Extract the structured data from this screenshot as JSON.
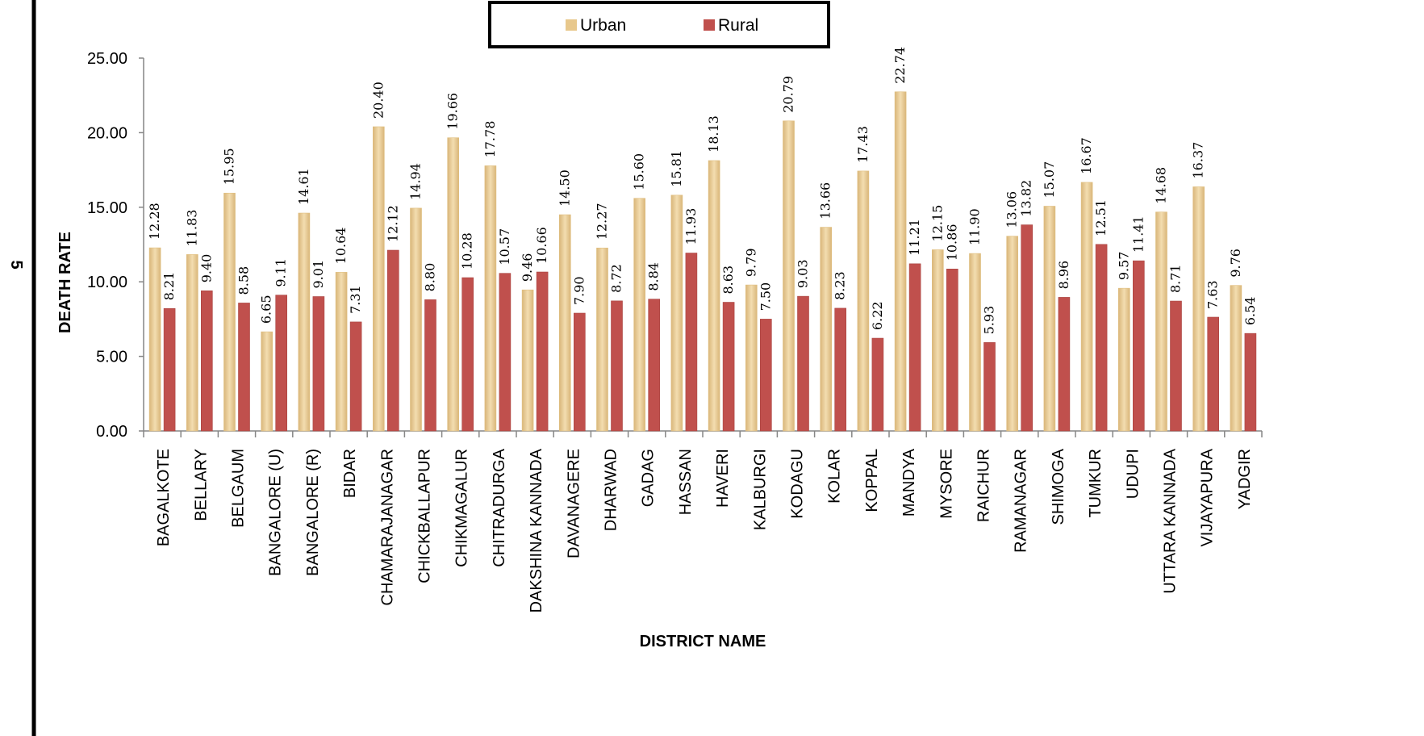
{
  "page_number": "5",
  "chart_data": {
    "type": "bar",
    "xlabel": "DISTRICT NAME",
    "ylabel": "DEATH RATE",
    "ylim": [
      0,
      25
    ],
    "yticks": [
      "0.00",
      "5.00",
      "10.00",
      "15.00",
      "20.00",
      "25.00"
    ],
    "grid": false,
    "legend_position": "top-center",
    "categories": [
      "BAGALKOTE",
      "BELLARY",
      "BELGAUM",
      "BANGALORE (U)",
      "BANGALORE (R)",
      "BIDAR",
      "CHAMARAJANAGAR",
      "CHICKBALLAPUR",
      "CHIKMAGALUR",
      "CHITRADURGA",
      "DAKSHINA KANNADA",
      "DAVANAGERE",
      "DHARWAD",
      "GADAG",
      "HASSAN",
      "HAVERI",
      "KALBURGI",
      "KODAGU",
      "KOLAR",
      "KOPPAL",
      "MANDYA",
      "MYSORE",
      "RAICHUR",
      "RAMANAGAR",
      "SHIMOGA",
      "TUMKUR",
      "UDUPI",
      "UTTARA KANNADA",
      "VIJAYAPURA",
      "YADGIR"
    ],
    "series": [
      {
        "name": "Urban",
        "color": "#E8C88C",
        "values": [
          12.28,
          11.83,
          15.95,
          6.65,
          14.61,
          10.64,
          20.4,
          14.94,
          19.66,
          17.78,
          9.46,
          14.5,
          12.27,
          15.6,
          15.81,
          18.13,
          9.79,
          20.79,
          13.66,
          17.43,
          22.74,
          12.15,
          11.9,
          13.06,
          15.07,
          16.67,
          9.57,
          14.68,
          16.37,
          9.76
        ],
        "labels": [
          "12.28",
          "11.83",
          "15.95",
          "6.65",
          "14.61",
          "10.64",
          "20.40",
          "14.94",
          "19.66",
          "17.78",
          "9.46",
          "14.50",
          "12.27",
          "15.60",
          "15.81",
          "18.13",
          "9.79",
          "20.79",
          "13.66",
          "17.43",
          "22.74",
          "12.15",
          "11.90",
          "13.06",
          "15.07",
          "16.67",
          "9.57",
          "14.68",
          "16.37",
          "9.76"
        ]
      },
      {
        "name": "Rural",
        "color": "#C0504D",
        "values": [
          8.21,
          9.4,
          8.58,
          9.11,
          9.01,
          7.31,
          12.12,
          8.8,
          10.28,
          10.57,
          10.66,
          7.9,
          8.72,
          8.84,
          11.93,
          8.63,
          7.5,
          9.03,
          8.23,
          6.22,
          11.21,
          10.86,
          5.93,
          13.82,
          8.96,
          12.51,
          11.41,
          8.71,
          7.63,
          6.54
        ],
        "labels": [
          "8.21",
          "9.40",
          "8.58",
          "9.11",
          "9.01",
          "7.31",
          "12.12",
          "8.80",
          "10.28",
          "10.57",
          "10.66",
          "7.90",
          "8.72",
          "8.84",
          "11.93",
          "8.63",
          "7.50",
          "9.03",
          "8.23",
          "6.22",
          "11.21",
          "10.86",
          "5.93",
          "13.82",
          "8.96",
          "12.51",
          "11.41",
          "8.71",
          "7.63",
          "6.54"
        ]
      }
    ]
  }
}
